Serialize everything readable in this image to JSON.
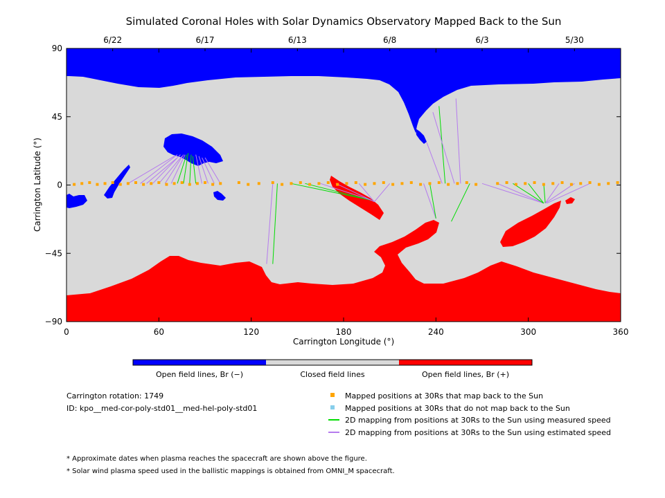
{
  "chart_data": {
    "type": "map",
    "title": "Simulated Coronal Holes with Solar Dynamics Observatory Mapped Back to the Sun",
    "xlabel": "Carrington Longitude (°)",
    "ylabel": "Carrington Latitude (°)",
    "xlim": [
      0,
      360
    ],
    "ylim": [
      -90,
      90
    ],
    "x_ticks": [
      "0",
      "60",
      "120",
      "180",
      "240",
      "300",
      "360"
    ],
    "y_ticks": [
      "90",
      "45",
      "0",
      "-45",
      "-90"
    ],
    "top_dates": [
      {
        "label": "6/22",
        "lon": 30
      },
      {
        "label": "6/17",
        "lon": 90
      },
      {
        "label": "6/13",
        "lon": 150
      },
      {
        "label": "6/8",
        "lon": 210
      },
      {
        "label": "6/3",
        "lon": 270
      },
      {
        "label": "5/30",
        "lon": 330
      }
    ],
    "colors": {
      "negative": "#0000ff",
      "closed": "#d9d9d9",
      "positive": "#ff0000",
      "mapped": "#ffa500",
      "unmapped": "#87ceeb",
      "measured": "#00dd00",
      "estimated": "#b57bee"
    },
    "colorbar": [
      "Open field lines, Br (−)",
      "Closed field lines",
      "Open field lines, Br (+)"
    ],
    "legend": [
      {
        "kind": "marker-orange",
        "text": "Mapped positions at 30Rs that map back to the Sun"
      },
      {
        "kind": "marker-blue",
        "text": "Mapped positions at 30Rs that do not map back to the Sun"
      },
      {
        "kind": "line-green",
        "text": "2D mapping from positions at 30Rs to the Sun using measured speed"
      },
      {
        "kind": "line-purple",
        "text": "2D mapping from positions at 30Rs to the Sun using estimated speed"
      }
    ],
    "info": {
      "rotation": "Carrington rotation: 1749",
      "id": "ID: kpo__med-cor-poly-std01__med-hel-poly-std01"
    },
    "notes": [
      "* Approximate dates when plasma reaches the spacecraft are shown above the figure.",
      "* Solar wind plasma speed used in the ballistic mappings is obtained from OMNI_M spacecraft."
    ],
    "mappings": [
      {
        "lon": 48,
        "lat": 1,
        "tlon": 72,
        "tlat": 20,
        "speed": "estimated"
      },
      {
        "lon": 52,
        "lat": 1,
        "tlon": 72,
        "tlat": 18,
        "speed": "estimated"
      },
      {
        "lon": 56,
        "lat": 1,
        "tlon": 74,
        "tlat": 20,
        "speed": "estimated"
      },
      {
        "lon": 60,
        "lat": 1,
        "tlon": 75,
        "tlat": 19,
        "speed": "estimated"
      },
      {
        "lon": 64,
        "lat": 1,
        "tlon": 76,
        "tlat": 20,
        "speed": "estimated"
      },
      {
        "lon": 68,
        "lat": 1,
        "tlon": 77,
        "tlat": 20,
        "speed": "estimated"
      },
      {
        "lon": 72,
        "lat": 1,
        "tlon": 78,
        "tlat": 20,
        "speed": "measured"
      },
      {
        "lon": 76,
        "lat": 1,
        "tlon": 79,
        "tlat": 21,
        "speed": "measured"
      },
      {
        "lon": 80,
        "lat": 1,
        "tlon": 81,
        "tlat": 20,
        "speed": "measured"
      },
      {
        "lon": 84,
        "lat": 1,
        "tlon": 82,
        "tlat": 19,
        "speed": "measured"
      },
      {
        "lon": 88,
        "lat": 1,
        "tlon": 84,
        "tlat": 20,
        "speed": "estimated"
      },
      {
        "lon": 92,
        "lat": 1,
        "tlon": 86,
        "tlat": 19,
        "speed": "estimated"
      },
      {
        "lon": 96,
        "lat": 1,
        "tlon": 88,
        "tlat": 18,
        "speed": "estimated"
      },
      {
        "lon": 100,
        "lat": 1,
        "tlon": 90,
        "tlat": 18,
        "speed": "estimated"
      },
      {
        "lon": 40,
        "lat": 1,
        "tlon": 70,
        "tlat": 19,
        "speed": "estimated"
      },
      {
        "lon": 134,
        "lat": 1,
        "tlon": 130,
        "tlat": -52,
        "speed": "estimated"
      },
      {
        "lon": 137,
        "lat": 1,
        "tlon": 134,
        "tlat": -52,
        "speed": "measured"
      },
      {
        "lon": 146,
        "lat": 1,
        "tlon": 198,
        "tlat": -10,
        "speed": "measured"
      },
      {
        "lon": 155,
        "lat": 1,
        "tlon": 198,
        "tlat": -10,
        "speed": "measured"
      },
      {
        "lon": 165,
        "lat": 1,
        "tlon": 198,
        "tlat": -10,
        "speed": "estimated"
      },
      {
        "lon": 175,
        "lat": 1,
        "tlon": 200,
        "tlat": -11,
        "speed": "estimated"
      },
      {
        "lon": 190,
        "lat": 1,
        "tlon": 200,
        "tlat": -11,
        "speed": "estimated"
      },
      {
        "lon": 210,
        "lat": 1,
        "tlon": 200,
        "tlat": -11,
        "speed": "estimated"
      },
      {
        "lon": 232,
        "lat": 1,
        "tlon": 240,
        "tlat": -22,
        "speed": "estimated"
      },
      {
        "lon": 236,
        "lat": 1,
        "tlon": 240,
        "tlat": -22,
        "speed": "measured"
      },
      {
        "lon": 244,
        "lat": 1,
        "tlon": 234,
        "tlat": 28,
        "speed": "estimated"
      },
      {
        "lon": 246,
        "lat": 1,
        "tlon": 242,
        "tlat": 52,
        "speed": "measured"
      },
      {
        "lon": 252,
        "lat": 1,
        "tlon": 238,
        "tlat": 48,
        "speed": "estimated"
      },
      {
        "lon": 256,
        "lat": 1,
        "tlon": 253,
        "tlat": 57,
        "speed": "estimated"
      },
      {
        "lon": 262,
        "lat": 1,
        "tlon": 250,
        "tlat": -24,
        "speed": "measured"
      },
      {
        "lon": 270,
        "lat": 1,
        "tlon": 310,
        "tlat": -12,
        "speed": "estimated"
      },
      {
        "lon": 280,
        "lat": 1,
        "tlon": 310,
        "tlat": -12,
        "speed": "estimated"
      },
      {
        "lon": 290,
        "lat": 1,
        "tlon": 310,
        "tlat": -12,
        "speed": "measured"
      },
      {
        "lon": 300,
        "lat": 1,
        "tlon": 310,
        "tlat": -12,
        "speed": "measured"
      },
      {
        "lon": 310,
        "lat": 1,
        "tlon": 311,
        "tlat": -12,
        "speed": "measured"
      },
      {
        "lon": 320,
        "lat": 1,
        "tlon": 311,
        "tlat": -12,
        "speed": "estimated"
      },
      {
        "lon": 330,
        "lat": 1,
        "tlon": 311,
        "tlat": -12,
        "speed": "estimated"
      },
      {
        "lon": 340,
        "lat": 1,
        "tlon": 312,
        "tlat": -12,
        "speed": "estimated"
      }
    ],
    "mapped_points_lon": [
      5,
      10,
      15,
      20,
      25,
      30,
      35,
      40,
      45,
      50,
      55,
      60,
      65,
      70,
      75,
      80,
      85,
      90,
      95,
      100,
      112,
      118,
      125,
      134,
      140,
      146,
      152,
      158,
      164,
      170,
      176,
      182,
      188,
      194,
      200,
      206,
      212,
      218,
      224,
      230,
      236,
      242,
      248,
      254,
      260,
      266,
      280,
      286,
      292,
      298,
      304,
      310,
      316,
      322,
      328,
      334,
      340,
      346,
      352,
      358
    ]
  }
}
